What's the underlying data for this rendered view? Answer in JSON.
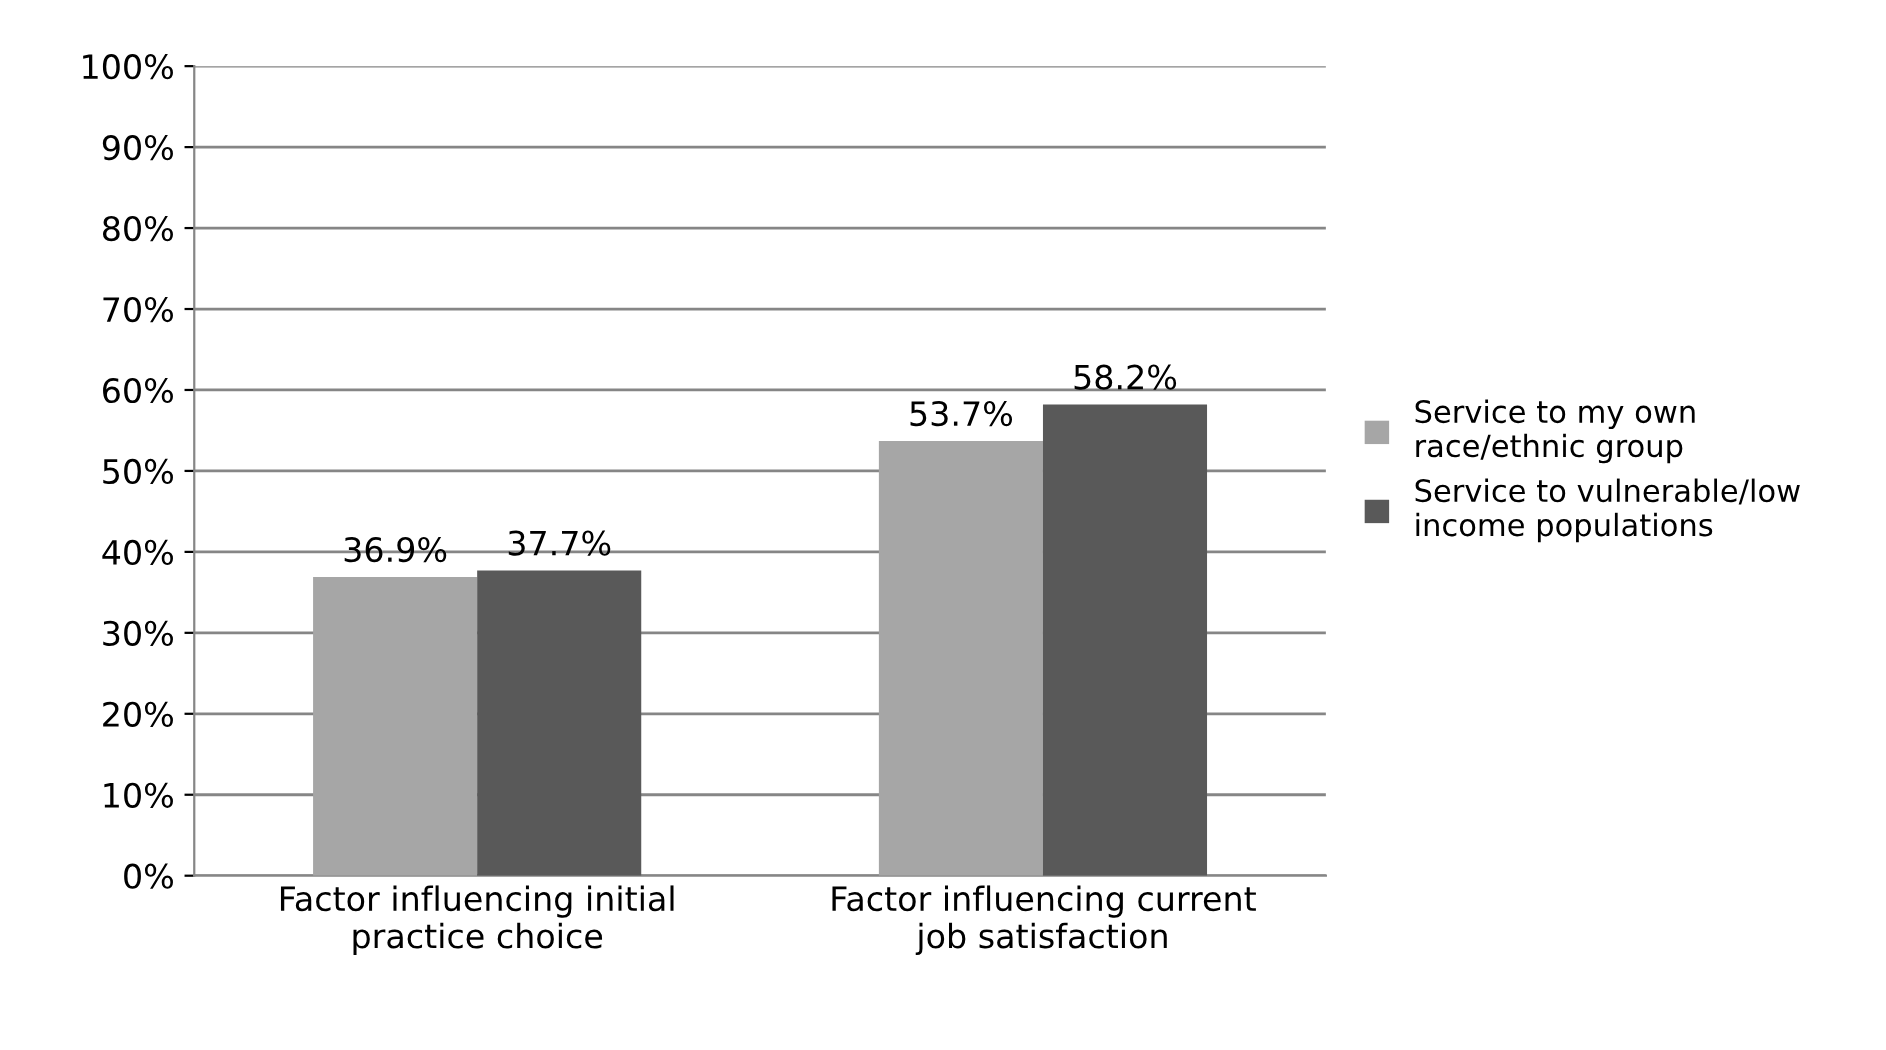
{
  "chart_data": {
    "type": "bar",
    "categories": [
      "Factor influencing initial practice choice",
      "Factor influencing current job satisfaction"
    ],
    "series": [
      {
        "name": "Service to my own race/ethnic group",
        "color": "#a6a6a6",
        "values": [
          36.9,
          53.7
        ],
        "value_labels": [
          "36.9%",
          "53.7%"
        ]
      },
      {
        "name": "Service to vulnerable/low income populations",
        "color": "#595959",
        "values": [
          37.7,
          58.2
        ],
        "value_labels": [
          "37.7%",
          "58.2%"
        ]
      }
    ],
    "ylim": [
      0,
      100
    ],
    "yticks": [
      {
        "value": 0,
        "label": "0%"
      },
      {
        "value": 10,
        "label": "10%"
      },
      {
        "value": 20,
        "label": "20%"
      },
      {
        "value": 30,
        "label": "30%"
      },
      {
        "value": 40,
        "label": "40%"
      },
      {
        "value": 50,
        "label": "50%"
      },
      {
        "value": 60,
        "label": "60%"
      },
      {
        "value": 70,
        "label": "70%"
      },
      {
        "value": 80,
        "label": "80%"
      },
      {
        "value": 90,
        "label": "90%"
      },
      {
        "value": 100,
        "label": "100%"
      }
    ],
    "grid": "y",
    "legend": "right"
  }
}
